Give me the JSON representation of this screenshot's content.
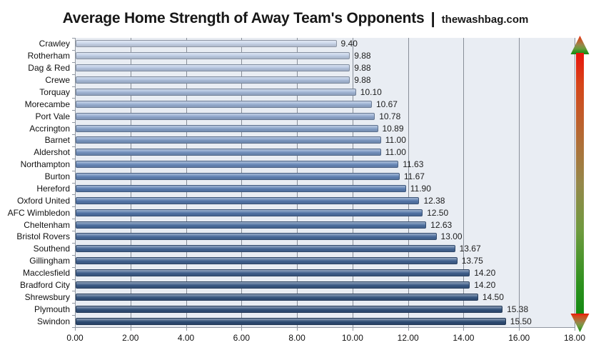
{
  "title": {
    "main": "Average Home Strength of Away Team's Opponents",
    "separator": "|",
    "site": "thewashbag.com"
  },
  "chart_data": {
    "type": "bar",
    "orientation": "horizontal",
    "title": "Average Home Strength of Away Team's Opponents | thewashbag.com",
    "categories": [
      "Crawley",
      "Rotherham",
      "Dag & Red",
      "Crewe",
      "Torquay",
      "Morecambe",
      "Port Vale",
      "Accrington",
      "Barnet",
      "Aldershot",
      "Northampton",
      "Burton",
      "Hereford",
      "Oxford United",
      "AFC Wimbledon",
      "Cheltenham",
      "Bristol Rovers",
      "Southend",
      "Gillingham",
      "Macclesfield",
      "Bradford City",
      "Shrewsbury",
      "Plymouth",
      "Swindon"
    ],
    "values": [
      9.4,
      9.88,
      9.88,
      9.88,
      10.1,
      10.67,
      10.78,
      10.89,
      11.0,
      11.0,
      11.63,
      11.67,
      11.9,
      12.38,
      12.5,
      12.63,
      13.0,
      13.67,
      13.75,
      14.2,
      14.2,
      14.5,
      15.38,
      15.5
    ],
    "value_labels": [
      "9.40",
      "9.88",
      "9.88",
      "9.88",
      "10.10",
      "10.67",
      "10.78",
      "10.89",
      "11.00",
      "11.00",
      "11.63",
      "11.67",
      "11.90",
      "12.38",
      "12.50",
      "12.63",
      "13.00",
      "13.67",
      "13.75",
      "14.20",
      "14.20",
      "14.50",
      "15.38",
      "15.50"
    ],
    "category_order": "top-to-bottom as displayed",
    "xlabel": "",
    "ylabel": "",
    "xlim": [
      0,
      18
    ],
    "x_tick_step": 2,
    "x_tick_labels": [
      "0.00",
      "2.00",
      "4.00",
      "6.00",
      "8.00",
      "10.00",
      "12.00",
      "14.00",
      "16.00",
      "18.00"
    ],
    "grid": true,
    "legend": false,
    "colors": {
      "plot_background": "#E9EDF3",
      "gridline": "#888E98",
      "axis": "#9097A1",
      "bar_fill_light": "#C9D5EA",
      "bar_fill_mid": "#5B7FB4",
      "bar_fill_dark": "#2E4D76",
      "arrow_top": "#E9140C",
      "arrow_mid": "#95884A",
      "arrow_bottom": "#128912"
    },
    "annotations": [
      {
        "name": "gradient-arrow",
        "description": "vertical double-headed arrow at right edge, red at top fading to green at bottom"
      }
    ]
  }
}
